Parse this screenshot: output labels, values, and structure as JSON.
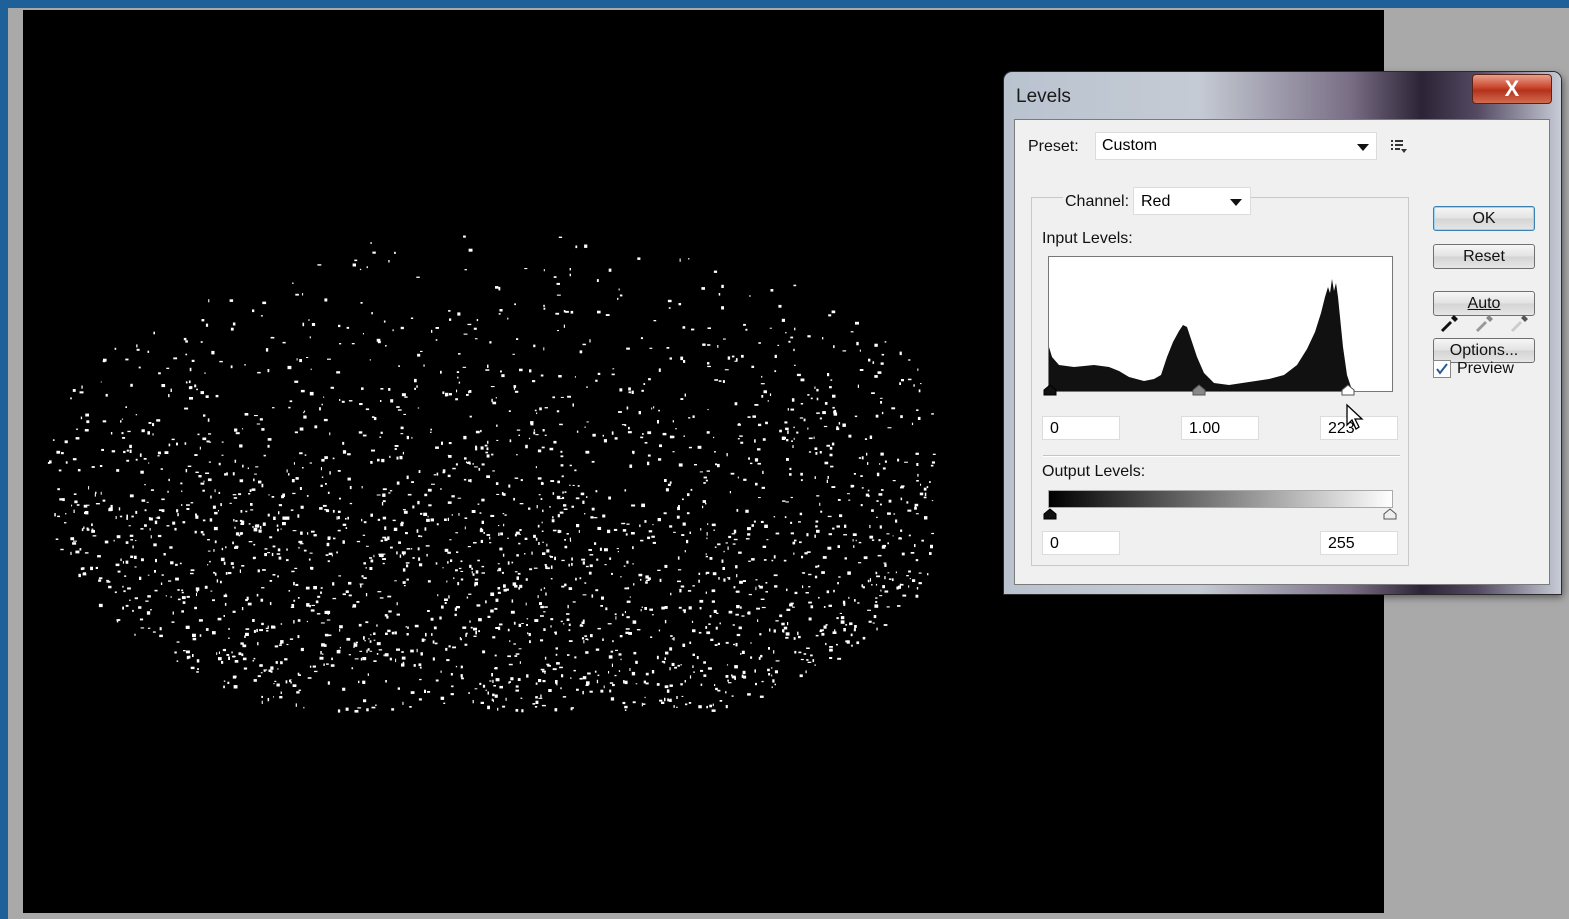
{
  "dialog": {
    "title": "Levels",
    "close_label": "X",
    "preset_label": "Preset:",
    "preset_value": "Custom",
    "channel_label": "Channel:",
    "channel_value": "Red",
    "input_levels_label": "Input Levels:",
    "output_levels_label": "Output Levels:",
    "input_black": "0",
    "input_gamma": "1.00",
    "input_white": "223",
    "output_black": "0",
    "output_white": "255",
    "buttons": {
      "ok": "OK",
      "reset": "Reset",
      "auto": "Auto",
      "options": "Options..."
    },
    "preview_label": "Preview",
    "preview_checked": true,
    "accent": "#3c7fb1"
  },
  "icons": [
    "close-icon",
    "dropdown-caret-icon",
    "preset-menu-icon",
    "eyedropper-black-icon",
    "eyedropper-gray-icon",
    "eyedropper-white-icon",
    "checkmark-icon",
    "cursor-icon"
  ]
}
